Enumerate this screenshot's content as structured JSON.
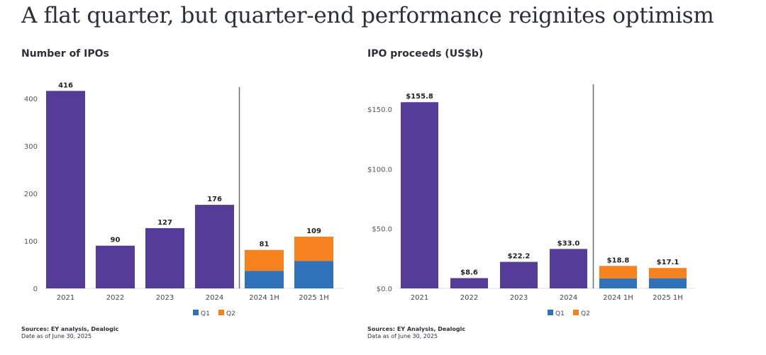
{
  "title": "A flat quarter, but quarter-end performance reignites optimism",
  "chart_data": [
    {
      "type": "bar",
      "title": "Number of IPOs",
      "categories": [
        "2021",
        "2022",
        "2023",
        "2024",
        "2024 1H",
        "2025 1H"
      ],
      "values": [
        416,
        90,
        127,
        176,
        null,
        null
      ],
      "stacked": {
        "Q1": [
          null,
          null,
          null,
          null,
          37,
          58
        ],
        "Q2": [
          null,
          null,
          null,
          null,
          44,
          51
        ]
      },
      "labels": [
        "416",
        "90",
        "127",
        "176",
        "81",
        "109"
      ],
      "yticks": [
        "0",
        "100",
        "200",
        "300",
        "400"
      ],
      "ylim": [
        0,
        430
      ],
      "tickvals": [
        0,
        100,
        200,
        300,
        400
      ],
      "legend": [
        "Q1",
        "Q2"
      ],
      "legend_position": "bottom",
      "source": "Sources: EY analysis, Dealogic",
      "date": "Date as of June 30, 2025"
    },
    {
      "type": "bar",
      "title": "IPO proceeds (US$b)",
      "categories": [
        "2021",
        "2022",
        "2023",
        "2024",
        "2024 1H",
        "2025 1H"
      ],
      "values": [
        155.8,
        8.6,
        22.2,
        33.0,
        null,
        null
      ],
      "stacked": {
        "Q1": [
          null,
          null,
          null,
          null,
          8.4,
          8.5
        ],
        "Q2": [
          null,
          null,
          null,
          null,
          10.4,
          8.6
        ]
      },
      "labels": [
        "$155.8",
        "$8.6",
        "$22.2",
        "$33.0",
        "$18.8",
        "$17.1"
      ],
      "yticks": [
        "$0.0",
        "$50.0",
        "$100.0",
        "$150.0"
      ],
      "ylim": [
        0,
        172
      ],
      "tickvals": [
        0,
        50,
        100,
        150
      ],
      "legend": [
        "Q1",
        "Q2"
      ],
      "legend_position": "bottom",
      "source": "Sources: EY Analysis, Dealogic",
      "date": "Data as of June 30, 2025"
    }
  ],
  "colors": {
    "annual": "#553c99",
    "Q1": "#2f72b9",
    "Q2": "#f5821f",
    "divider": "#6b6b78"
  }
}
